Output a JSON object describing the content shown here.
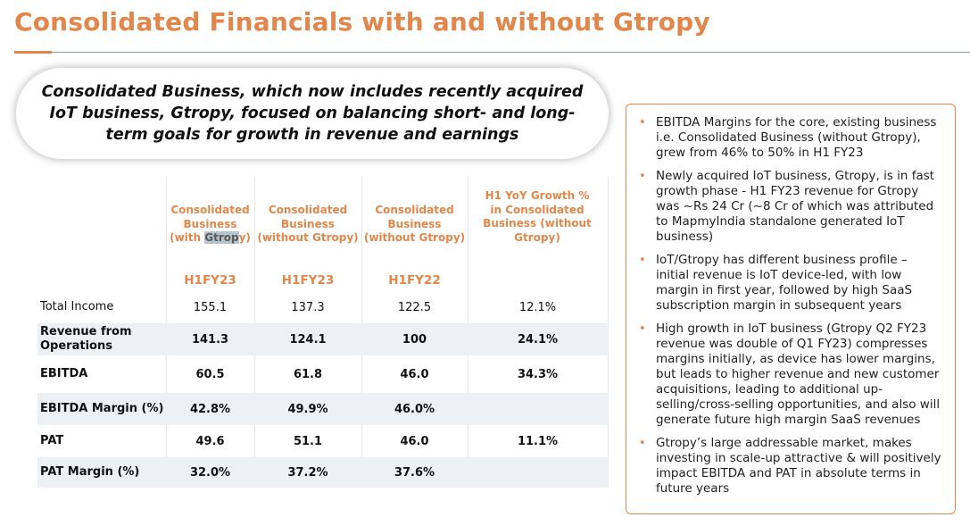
{
  "title": "Consolidated Financials with and without Gtropy",
  "callout": "Consolidated Business, which now includes recently acquired IoT business, Gtropy, focused on balancing short- and long-term goals for growth in revenue and earnings",
  "table": {
    "columns": [
      {
        "head_pre": "Consolidated Business (with ",
        "head_hl": "Gtrop",
        "head_post": "y)",
        "period": "H1FY23"
      },
      {
        "head_pre": "Consolidated Business (without Gtropy)",
        "head_hl": "",
        "head_post": "",
        "period": "H1FY23"
      },
      {
        "head_pre": "Consolidated Business (without Gtropy)",
        "head_hl": "",
        "head_post": "",
        "period": "H1FY22"
      },
      {
        "head_pre": "H1 YoY Growth % in Consolidated Business (without Gtropy)",
        "head_hl": "",
        "head_post": "",
        "period": ""
      }
    ],
    "rows": [
      {
        "label": "Total Income",
        "values": [
          "155.1",
          "137.3",
          "122.5",
          "12.1%"
        ]
      },
      {
        "label": "Revenue from Operations",
        "values": [
          "141.3",
          "124.1",
          "100",
          "24.1%"
        ]
      },
      {
        "label": "EBITDA",
        "values": [
          "60.5",
          "61.8",
          "46.0",
          "34.3%"
        ]
      },
      {
        "label": "EBITDA Margin (%)",
        "values": [
          "42.8%",
          "49.9%",
          "46.0%",
          ""
        ]
      },
      {
        "label": "PAT",
        "values": [
          "49.6",
          "51.1",
          "46.0",
          "11.1%"
        ]
      },
      {
        "label": "PAT Margin (%)",
        "values": [
          "32.0%",
          "37.2%",
          "37.6%",
          ""
        ]
      }
    ]
  },
  "bullets": [
    "EBITDA Margins for the core, existing business i.e. Consolidated Business (without Gtropy), grew from 46% to 50% in H1 FY23",
    "Newly acquired IoT business, Gtropy, is in fast growth phase - H1 FY23 revenue for Gtropy was ~Rs 24 Cr (~8 Cr of which was attributed to MapmyIndia standalone generated IoT business)",
    "IoT/Gtropy has different business profile – initial revenue is IoT device-led, with low margin in first year, followed by high SaaS subscription margin in subsequent years",
    "High growth in IoT business (Gtropy Q2 FY23 revenue was double of Q1 FY23) compresses margins initially, as device has lower margins, but leads to higher revenue and new customer acquisitions, leading to additional up-selling/cross-selling opportunities, and also will generate future high margin SaaS revenues",
    "Gtropy’s large addressable market, makes investing in scale-up attractive & will positively impact EBITDA and PAT in absolute terms in future years"
  ],
  "colors": {
    "accent": "#E2874B",
    "row_shade": "#edf1f4",
    "rule": "#8a9bb0"
  }
}
